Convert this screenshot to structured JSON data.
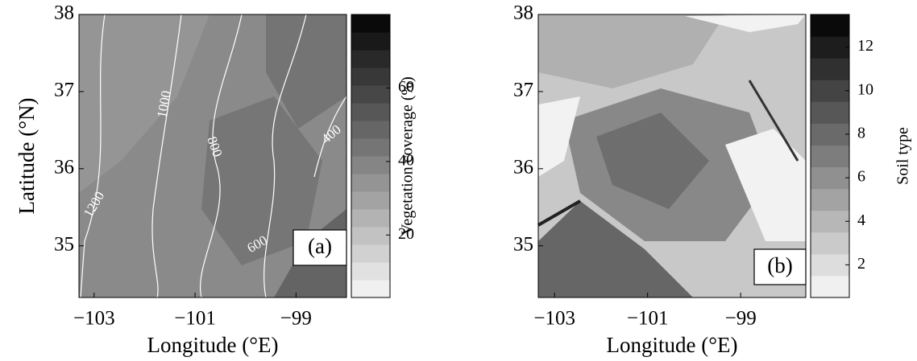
{
  "chart_data": [
    {
      "type": "heatmap",
      "panel_label": "(a)",
      "xlabel": "Longitude (°E)",
      "ylabel": "Latitude (°N)",
      "xlim": [
        -103.3,
        -98
      ],
      "ylim": [
        34.33,
        38
      ],
      "xticks": [
        {
          "value": -103,
          "label": "−103"
        },
        {
          "value": -101,
          "label": "−101"
        },
        {
          "value": -99,
          "label": "−99"
        }
      ],
      "yticks": [
        35,
        36,
        37,
        38
      ],
      "colorbar": {
        "label": "Vegetation coverage (%)",
        "clim": [
          3,
          80
        ],
        "ticks": [
          20,
          40,
          60
        ]
      },
      "contour_labels": [
        "1200",
        "1000",
        "800",
        "600",
        "400"
      ]
    },
    {
      "type": "heatmap",
      "panel_label": "(b)",
      "xlabel": "Longitude (°E)",
      "xlim": [
        -103.35,
        -97.6
      ],
      "ylim": [
        34.33,
        38
      ],
      "xticks": [
        {
          "value": -103,
          "label": "−103"
        },
        {
          "value": -101,
          "label": "−101"
        },
        {
          "value": -99,
          "label": "−99"
        }
      ],
      "yticks": [
        35,
        36,
        37,
        38
      ],
      "colorbar": {
        "label": "Soil type",
        "clim": [
          0.5,
          13.5
        ],
        "ticks": [
          2,
          4,
          6,
          8,
          10,
          12
        ]
      }
    }
  ]
}
